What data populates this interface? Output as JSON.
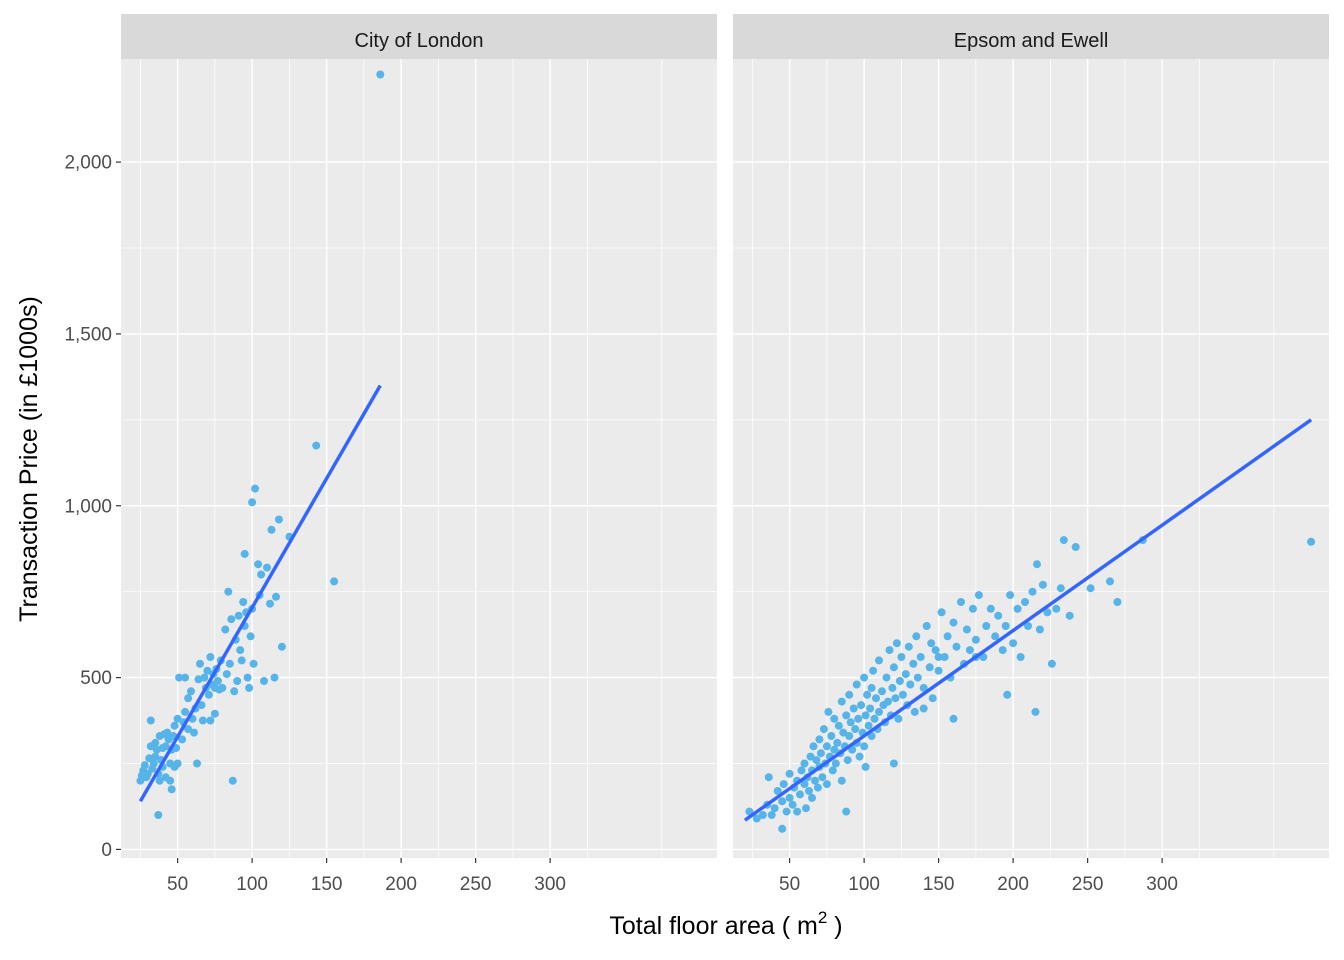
{
  "chart_data": {
    "type": "scatter",
    "xlabel": "Total floor area ( m",
    "xlabel_sup": "2",
    "xlabel_end": " )",
    "ylabel": "Transaction Price (in £1000s)",
    "xlim": [
      12,
      412
    ],
    "ylim": [
      -25,
      2300
    ],
    "x_ticks": [
      50,
      100,
      150,
      200,
      250,
      300
    ],
    "x_tick_labels": [
      "50",
      "100",
      "150",
      "200",
      "250",
      "300"
    ],
    "y_ticks": [
      0,
      500,
      1000,
      1500,
      2000
    ],
    "y_tick_labels": [
      "0",
      "500",
      "1,000",
      "1,500",
      "2,000"
    ],
    "grid": true,
    "point_color": "#56B4E9",
    "line_color": "#3366FF",
    "panel_background": "#EBEBEB",
    "strip_background": "#D9D9D9",
    "facets": [
      {
        "name": "City of London",
        "points": [
          [
            25,
            200
          ],
          [
            26,
            215
          ],
          [
            27,
            230
          ],
          [
            28,
            245
          ],
          [
            29,
            210
          ],
          [
            30,
            220
          ],
          [
            31,
            265
          ],
          [
            32,
            300
          ],
          [
            32,
            375
          ],
          [
            33,
            235
          ],
          [
            34,
            250
          ],
          [
            35,
            270
          ],
          [
            35,
            310
          ],
          [
            36,
            290
          ],
          [
            37,
            220
          ],
          [
            37,
            100
          ],
          [
            38,
            330
          ],
          [
            38,
            200
          ],
          [
            39,
            260
          ],
          [
            40,
            295
          ],
          [
            40,
            240
          ],
          [
            41,
            335
          ],
          [
            42,
            210
          ],
          [
            42,
            300
          ],
          [
            43,
            340
          ],
          [
            44,
            320
          ],
          [
            45,
            250
          ],
          [
            45,
            200
          ],
          [
            46,
            175
          ],
          [
            46,
            290
          ],
          [
            47,
            330
          ],
          [
            48,
            360
          ],
          [
            48,
            240
          ],
          [
            49,
            295
          ],
          [
            50,
            380
          ],
          [
            50,
            250
          ],
          [
            51,
            500
          ],
          [
            53,
            320
          ],
          [
            54,
            370
          ],
          [
            55,
            500
          ],
          [
            55,
            400
          ],
          [
            57,
            440
          ],
          [
            57,
            350
          ],
          [
            59,
            460
          ],
          [
            60,
            380
          ],
          [
            61,
            340
          ],
          [
            62,
            410
          ],
          [
            63,
            250
          ],
          [
            64,
            495
          ],
          [
            65,
            540
          ],
          [
            66,
            420
          ],
          [
            67,
            375
          ],
          [
            68,
            500
          ],
          [
            69,
            470
          ],
          [
            70,
            520
          ],
          [
            71,
            450
          ],
          [
            72,
            560
          ],
          [
            72,
            375
          ],
          [
            73,
            480
          ],
          [
            74,
            510
          ],
          [
            75,
            470
          ],
          [
            75,
            395
          ],
          [
            76,
            525
          ],
          [
            77,
            490
          ],
          [
            78,
            465
          ],
          [
            79,
            550
          ],
          [
            80,
            470
          ],
          [
            82,
            640
          ],
          [
            83,
            510
          ],
          [
            84,
            750
          ],
          [
            85,
            540
          ],
          [
            86,
            670
          ],
          [
            87,
            200
          ],
          [
            88,
            460
          ],
          [
            89,
            610
          ],
          [
            90,
            490
          ],
          [
            91,
            680
          ],
          [
            92,
            580
          ],
          [
            93,
            550
          ],
          [
            94,
            720
          ],
          [
            95,
            860
          ],
          [
            95,
            650
          ],
          [
            96,
            690
          ],
          [
            97,
            500
          ],
          [
            98,
            470
          ],
          [
            99,
            620
          ],
          [
            100,
            1010
          ],
          [
            100,
            700
          ],
          [
            101,
            540
          ],
          [
            102,
            1050
          ],
          [
            104,
            830
          ],
          [
            105,
            740
          ],
          [
            106,
            800
          ],
          [
            108,
            490
          ],
          [
            110,
            820
          ],
          [
            112,
            715
          ],
          [
            113,
            930
          ],
          [
            115,
            500
          ],
          [
            116,
            735
          ],
          [
            118,
            960
          ],
          [
            120,
            590
          ],
          [
            125,
            910
          ],
          [
            143,
            1175
          ],
          [
            155,
            780
          ],
          [
            186,
            2255
          ]
        ],
        "fit": {
          "x": [
            25,
            186
          ],
          "y": [
            140,
            1350
          ]
        }
      },
      {
        "name": "Epsom and Ewell",
        "points": [
          [
            23,
            110
          ],
          [
            28,
            90
          ],
          [
            32,
            100
          ],
          [
            35,
            130
          ],
          [
            38,
            100
          ],
          [
            40,
            120
          ],
          [
            42,
            170
          ],
          [
            45,
            140
          ],
          [
            46,
            190
          ],
          [
            48,
            110
          ],
          [
            50,
            150
          ],
          [
            50,
            220
          ],
          [
            52,
            130
          ],
          [
            53,
            180
          ],
          [
            55,
            110
          ],
          [
            55,
            200
          ],
          [
            57,
            160
          ],
          [
            58,
            230
          ],
          [
            60,
            190
          ],
          [
            60,
            250
          ],
          [
            61,
            120
          ],
          [
            62,
            210
          ],
          [
            63,
            170
          ],
          [
            64,
            270
          ],
          [
            65,
            150
          ],
          [
            65,
            230
          ],
          [
            66,
            300
          ],
          [
            67,
            200
          ],
          [
            68,
            260
          ],
          [
            69,
            180
          ],
          [
            70,
            240
          ],
          [
            70,
            320
          ],
          [
            71,
            280
          ],
          [
            72,
            210
          ],
          [
            73,
            350
          ],
          [
            74,
            250
          ],
          [
            75,
            300
          ],
          [
            75,
            190
          ],
          [
            76,
            400
          ],
          [
            77,
            270
          ],
          [
            78,
            330
          ],
          [
            79,
            230
          ],
          [
            80,
            290
          ],
          [
            80,
            380
          ],
          [
            81,
            250
          ],
          [
            82,
            310
          ],
          [
            83,
            360
          ],
          [
            84,
            280
          ],
          [
            85,
            430
          ],
          [
            85,
            200
          ],
          [
            86,
            340
          ],
          [
            87,
            300
          ],
          [
            88,
            390
          ],
          [
            89,
            260
          ],
          [
            90,
            330
          ],
          [
            90,
            450
          ],
          [
            91,
            370
          ],
          [
            92,
            290
          ],
          [
            93,
            410
          ],
          [
            94,
            350
          ],
          [
            95,
            310
          ],
          [
            95,
            480
          ],
          [
            96,
            380
          ],
          [
            97,
            270
          ],
          [
            98,
            420
          ],
          [
            99,
            340
          ],
          [
            100,
            300
          ],
          [
            100,
            500
          ],
          [
            101,
            390
          ],
          [
            102,
            450
          ],
          [
            103,
            360
          ],
          [
            104,
            410
          ],
          [
            105,
            330
          ],
          [
            105,
            470
          ],
          [
            106,
            520
          ],
          [
            107,
            380
          ],
          [
            108,
            440
          ],
          [
            109,
            350
          ],
          [
            110,
            400
          ],
          [
            110,
            550
          ],
          [
            112,
            460
          ],
          [
            113,
            420
          ],
          [
            114,
            370
          ],
          [
            115,
            500
          ],
          [
            116,
            430
          ],
          [
            117,
            580
          ],
          [
            118,
            390
          ],
          [
            119,
            470
          ],
          [
            120,
            530
          ],
          [
            121,
            440
          ],
          [
            122,
            600
          ],
          [
            123,
            380
          ],
          [
            124,
            490
          ],
          [
            125,
            560
          ],
          [
            126,
            450
          ],
          [
            128,
            510
          ],
          [
            129,
            420
          ],
          [
            130,
            590
          ],
          [
            131,
            480
          ],
          [
            133,
            540
          ],
          [
            134,
            400
          ],
          [
            135,
            620
          ],
          [
            136,
            500
          ],
          [
            138,
            560
          ],
          [
            140,
            470
          ],
          [
            142,
            650
          ],
          [
            144,
            530
          ],
          [
            145,
            600
          ],
          [
            146,
            440
          ],
          [
            148,
            580
          ],
          [
            150,
            520
          ],
          [
            152,
            690
          ],
          [
            154,
            560
          ],
          [
            156,
            620
          ],
          [
            158,
            500
          ],
          [
            160,
            660
          ],
          [
            162,
            590
          ],
          [
            165,
            720
          ],
          [
            167,
            540
          ],
          [
            169,
            640
          ],
          [
            171,
            580
          ],
          [
            173,
            700
          ],
          [
            175,
            610
          ],
          [
            177,
            740
          ],
          [
            180,
            560
          ],
          [
            182,
            650
          ],
          [
            185,
            700
          ],
          [
            188,
            620
          ],
          [
            190,
            680
          ],
          [
            193,
            580
          ],
          [
            195,
            650
          ],
          [
            198,
            740
          ],
          [
            200,
            600
          ],
          [
            203,
            700
          ],
          [
            205,
            560
          ],
          [
            208,
            720
          ],
          [
            210,
            650
          ],
          [
            213,
            750
          ],
          [
            215,
            400
          ],
          [
            216,
            830
          ],
          [
            218,
            640
          ],
          [
            220,
            770
          ],
          [
            223,
            690
          ],
          [
            226,
            540
          ],
          [
            229,
            700
          ],
          [
            232,
            760
          ],
          [
            234,
            900
          ],
          [
            238,
            680
          ],
          [
            242,
            880
          ],
          [
            252,
            760
          ],
          [
            265,
            780
          ],
          [
            270,
            720
          ],
          [
            287,
            900
          ],
          [
            400,
            895
          ],
          [
            88,
            110
          ],
          [
            45,
            60
          ],
          [
            36,
            210
          ],
          [
            140,
            410
          ],
          [
            175,
            560
          ],
          [
            196,
            450
          ],
          [
            120,
            250
          ],
          [
            150,
            560
          ],
          [
            101,
            240
          ],
          [
            160,
            380
          ]
        ],
        "fit": {
          "x": [
            20,
            400
          ],
          "y": [
            85,
            1250
          ]
        }
      }
    ]
  }
}
